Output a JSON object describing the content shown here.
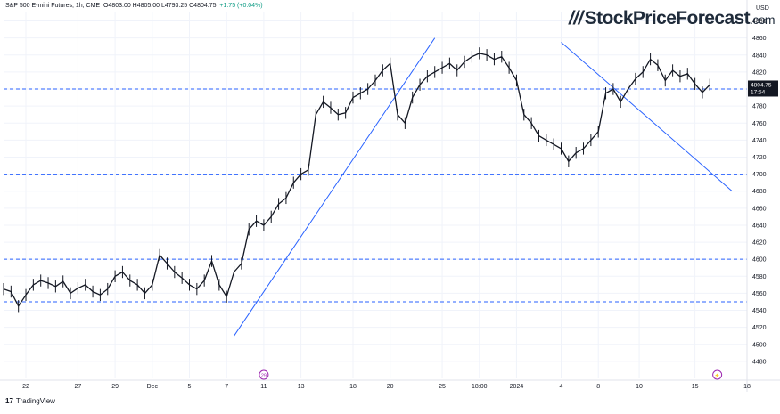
{
  "header": {
    "symbol": "S&P 500 E-mini Futures, 1h, CME",
    "ohlc": "O4803.00  H4805.00  L4793.25  C4804.75",
    "change": "+1.75 (+0.04%)"
  },
  "brand": {
    "name": "StockPriceForecast",
    "suffix": ".com"
  },
  "currency_label": "USD",
  "footer": {
    "logo_text": "TradingView",
    "mark": "17"
  },
  "colors": {
    "candle": "#131722",
    "trendline": "#2962ff",
    "level_line": "#2962ff",
    "grid": "#f0f3fa",
    "axis_text": "#131722",
    "price_label_bg": "#131722",
    "event_marker": "#9c27b0"
  },
  "chart_data": {
    "type": "line",
    "title": "S&P 500 E-mini Futures, 1h, CME",
    "ylim": [
      4460,
      4890
    ],
    "yticks": [
      4480,
      4500,
      4520,
      4540,
      4560,
      4580,
      4600,
      4620,
      4640,
      4660,
      4680,
      4700,
      4720,
      4740,
      4760,
      4780,
      4800,
      4820,
      4840,
      4860,
      4880
    ],
    "xlim": [
      0,
      100
    ],
    "x_ticks": [
      {
        "x": 3.0,
        "label": "22"
      },
      {
        "x": 10.0,
        "label": "27"
      },
      {
        "x": 15.0,
        "label": "29"
      },
      {
        "x": 20.0,
        "label": "Dec"
      },
      {
        "x": 25.0,
        "label": "5"
      },
      {
        "x": 30.0,
        "label": "7"
      },
      {
        "x": 35.0,
        "label": "11"
      },
      {
        "x": 40.0,
        "label": "13"
      },
      {
        "x": 47.0,
        "label": "18"
      },
      {
        "x": 52.0,
        "label": "20"
      },
      {
        "x": 59.0,
        "label": "25"
      },
      {
        "x": 64.0,
        "label": "18:00"
      },
      {
        "x": 69.0,
        "label": "2024"
      },
      {
        "x": 75.0,
        "label": "4"
      },
      {
        "x": 80.0,
        "label": "8"
      },
      {
        "x": 85.5,
        "label": "10"
      },
      {
        "x": 93.0,
        "label": "15"
      },
      {
        "x": 100.0,
        "label": "18"
      }
    ],
    "series": [
      {
        "values": [
          [
            0,
            4565
          ],
          [
            1,
            4562
          ],
          [
            2,
            4545
          ],
          [
            3,
            4558
          ],
          [
            4,
            4570
          ],
          [
            5,
            4575
          ],
          [
            6,
            4572
          ],
          [
            7,
            4568
          ],
          [
            8,
            4574
          ],
          [
            9,
            4560
          ],
          [
            10,
            4566
          ],
          [
            11,
            4570
          ],
          [
            12,
            4562
          ],
          [
            13,
            4558
          ],
          [
            14,
            4565
          ],
          [
            15,
            4580
          ],
          [
            16,
            4585
          ],
          [
            17,
            4575
          ],
          [
            18,
            4570
          ],
          [
            19,
            4560
          ],
          [
            20,
            4570
          ],
          [
            21,
            4605
          ],
          [
            22,
            4595
          ],
          [
            23,
            4585
          ],
          [
            24,
            4578
          ],
          [
            25,
            4570
          ],
          [
            26,
            4565
          ],
          [
            27,
            4575
          ],
          [
            28,
            4598
          ],
          [
            29,
            4570
          ],
          [
            30,
            4556
          ],
          [
            31,
            4585
          ],
          [
            32,
            4595
          ],
          [
            33,
            4635
          ],
          [
            34,
            4645
          ],
          [
            35,
            4640
          ],
          [
            36,
            4650
          ],
          [
            37,
            4665
          ],
          [
            38,
            4672
          ],
          [
            39,
            4690
          ],
          [
            40,
            4700
          ],
          [
            41,
            4705
          ],
          [
            42,
            4770
          ],
          [
            43,
            4785
          ],
          [
            44,
            4778
          ],
          [
            45,
            4770
          ],
          [
            46,
            4772
          ],
          [
            47,
            4790
          ],
          [
            48,
            4795
          ],
          [
            49,
            4800
          ],
          [
            50,
            4810
          ],
          [
            51,
            4822
          ],
          [
            52,
            4830
          ],
          [
            53,
            4770
          ],
          [
            54,
            4760
          ],
          [
            55,
            4790
          ],
          [
            56,
            4805
          ],
          [
            57,
            4815
          ],
          [
            58,
            4820
          ],
          [
            59,
            4825
          ],
          [
            60,
            4830
          ],
          [
            61,
            4822
          ],
          [
            62,
            4832
          ],
          [
            63,
            4838
          ],
          [
            64,
            4842
          ],
          [
            65,
            4840
          ],
          [
            66,
            4835
          ],
          [
            67,
            4838
          ],
          [
            68,
            4825
          ],
          [
            69,
            4810
          ],
          [
            70,
            4770
          ],
          [
            71,
            4760
          ],
          [
            72,
            4745
          ],
          [
            73,
            4740
          ],
          [
            74,
            4735
          ],
          [
            75,
            4730
          ],
          [
            76,
            4715
          ],
          [
            77,
            4725
          ],
          [
            78,
            4730
          ],
          [
            79,
            4740
          ],
          [
            80,
            4750
          ],
          [
            81,
            4795
          ],
          [
            82,
            4800
          ],
          [
            83,
            4785
          ],
          [
            84,
            4800
          ],
          [
            85,
            4812
          ],
          [
            86,
            4820
          ],
          [
            87,
            4835
          ],
          [
            88,
            4828
          ],
          [
            89,
            4810
          ],
          [
            90,
            4822
          ],
          [
            91,
            4815
          ],
          [
            92,
            4818
          ],
          [
            93,
            4806
          ],
          [
            94,
            4796
          ],
          [
            95,
            4805
          ]
        ]
      }
    ],
    "horizontal_levels": [
      4800,
      4700,
      4600,
      4550
    ],
    "trendlines": [
      {
        "from": [
          31,
          4510
        ],
        "to": [
          58,
          4860
        ]
      },
      {
        "from": [
          75,
          4855
        ],
        "to": [
          98,
          4680
        ]
      }
    ],
    "last_price": {
      "value": 4804.75,
      "label": "4804.75",
      "countdown": "17:54"
    },
    "event_markers": [
      {
        "x": 35,
        "label": "29"
      },
      {
        "x": 96,
        "label": "⚡"
      }
    ]
  }
}
